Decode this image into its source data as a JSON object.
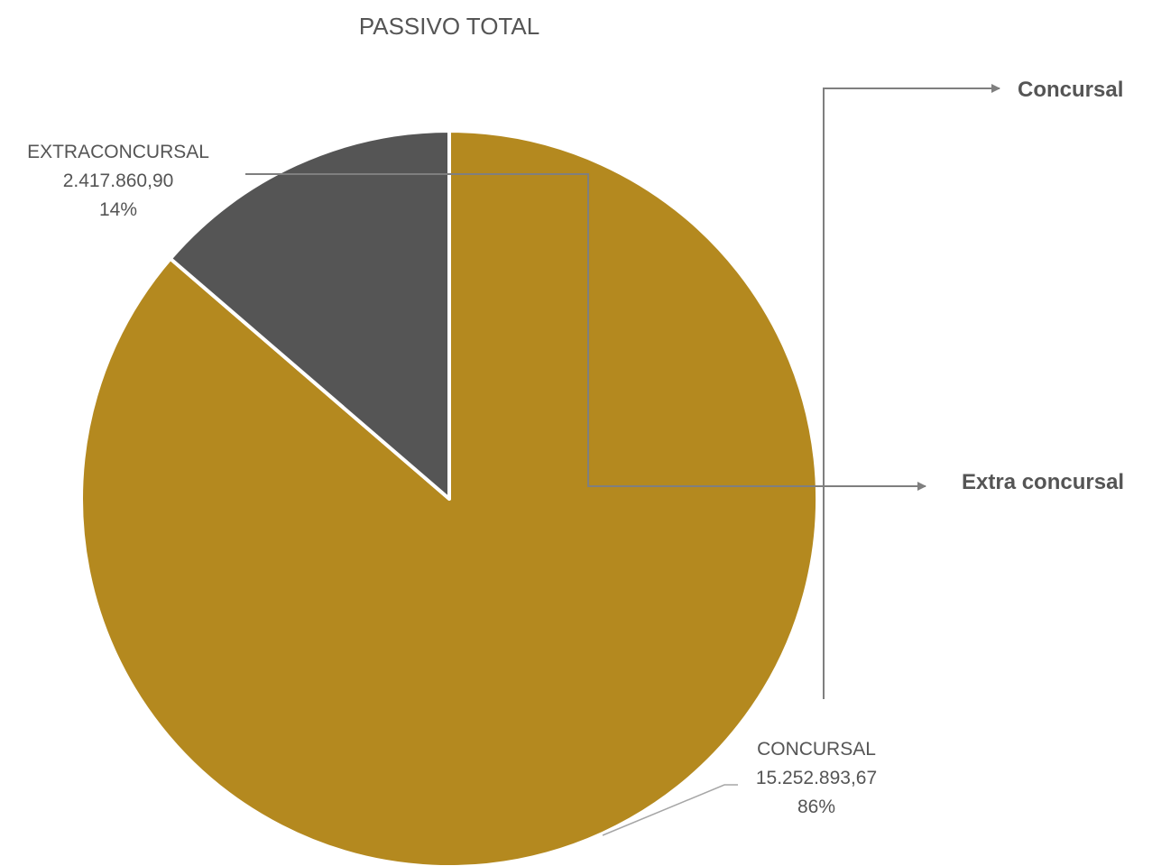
{
  "chart_data": {
    "type": "pie",
    "title": "PASSIVO TOTAL",
    "slices": [
      {
        "label": "CONCURSAL",
        "value": "15.252.893,67",
        "numeric_value": 15252893.67,
        "percent": "86%",
        "color": "#b4891f"
      },
      {
        "label": "EXTRACONCURSAL",
        "value": "2.417.860,90",
        "numeric_value": 2417860.9,
        "percent": "14%",
        "color": "#555555"
      }
    ],
    "legend": {
      "placement": "right",
      "entries": [
        "Concursal",
        "Extra concursal"
      ]
    },
    "connector_color": "#7f7f7f"
  }
}
